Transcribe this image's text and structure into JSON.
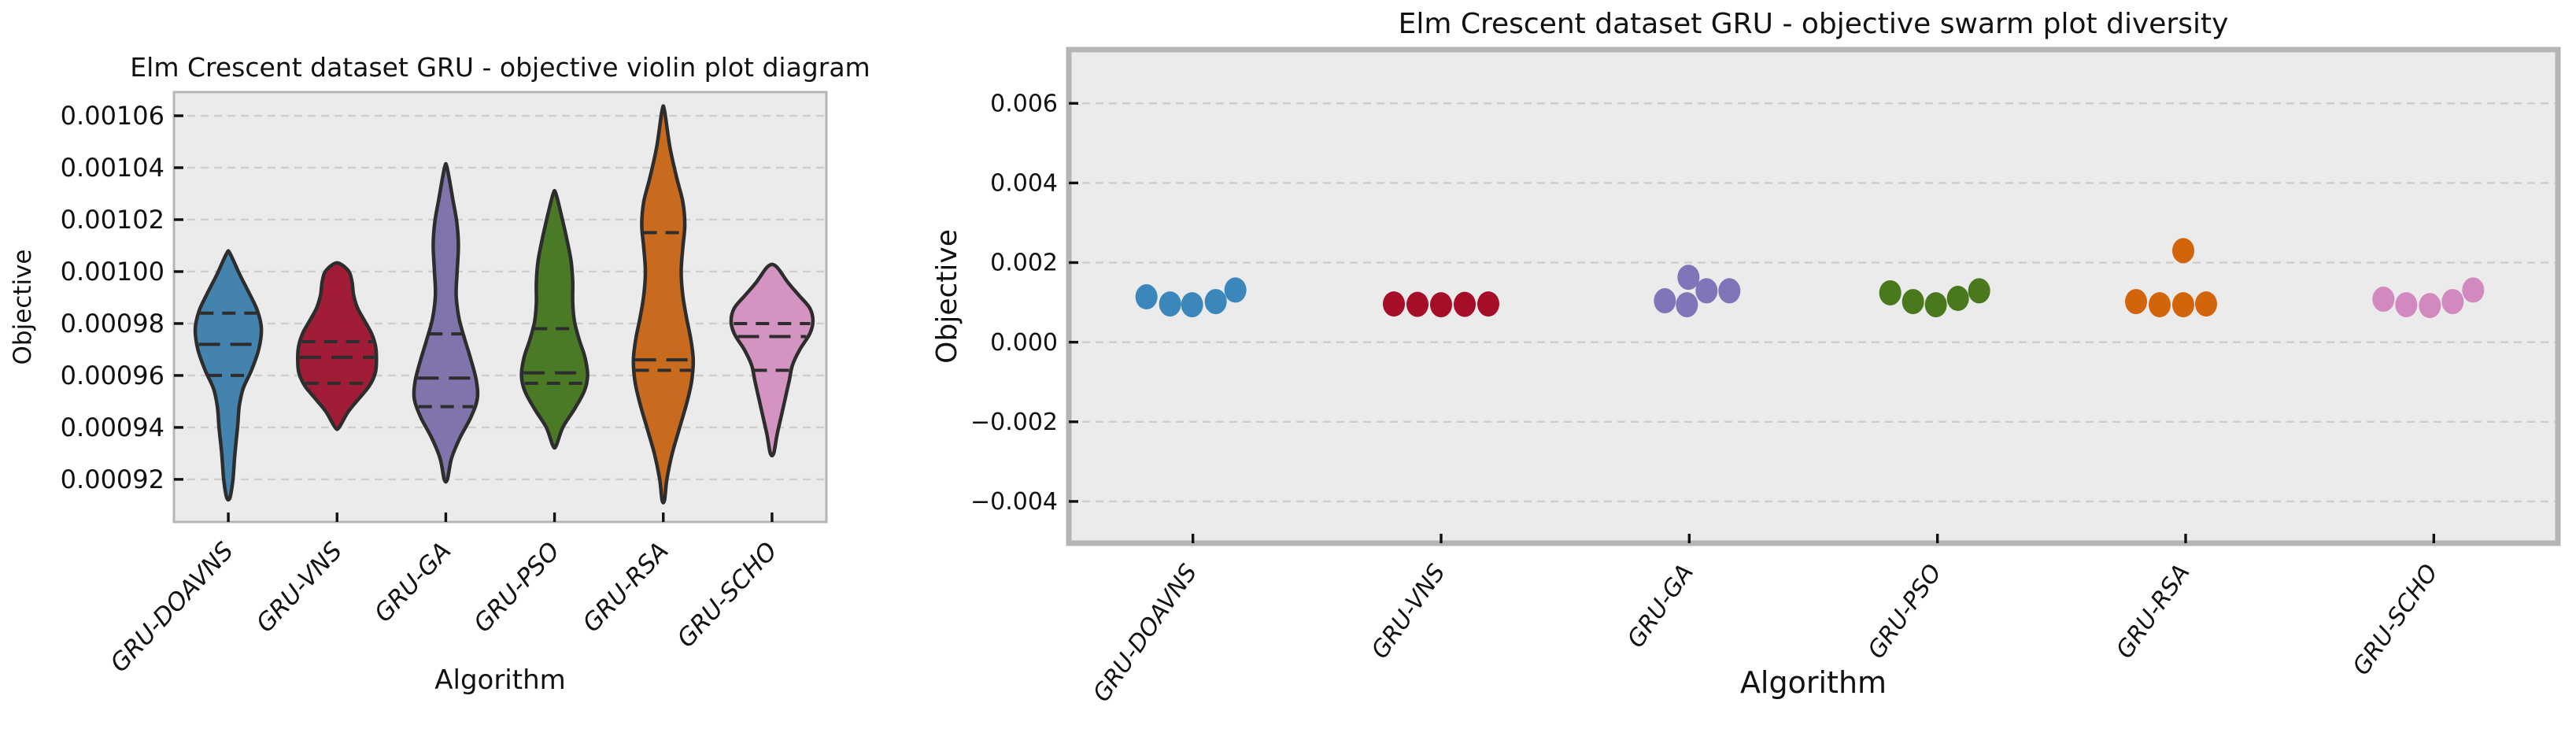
{
  "page": {
    "background": "#ffffff",
    "plot_background": "#ebebeb",
    "grid_color": "#cdcdcd",
    "frame_color": "#b5b5b5",
    "violin_edge_color": "#2d2d2d",
    "text_color": "#111111"
  },
  "chart_data": [
    {
      "id": "violin-chart",
      "type": "violin",
      "title": "Elm Crescent dataset GRU -  objective violin plot diagram",
      "xlabel": "Algorithm",
      "ylabel": "Objective",
      "grid": true,
      "ylim": [
        0.0009036,
        0.0010691
      ],
      "yticks": [
        {
          "label": "0.00106",
          "value": 0.00106
        },
        {
          "label": "0.00104",
          "value": 0.00104
        },
        {
          "label": "0.00102",
          "value": 0.00102
        },
        {
          "label": "0.00100",
          "value": 0.001
        },
        {
          "label": "0.00098",
          "value": 0.00098
        },
        {
          "label": "0.00096",
          "value": 0.00096
        },
        {
          "label": "0.00094",
          "value": 0.00094
        },
        {
          "label": "0.00092",
          "value": 0.00092
        }
      ],
      "categories": [
        "GRU-DOAVNS",
        "GRU-VNS",
        "GRU-GA",
        "GRU-PSO",
        "GRU-RSA",
        "GRU-SCHO"
      ],
      "violins": [
        {
          "name": "GRU-DOAVNS",
          "color": "#4383ad",
          "halfwidth": 42,
          "range": [
            0.000913,
            0.001007
          ],
          "quartiles": [
            0.00096,
            0.000972,
            0.000984
          ],
          "points": [
            [
              0.000913,
              0.05
            ],
            [
              0.00092,
              0.14
            ],
            [
              0.00093,
              0.2
            ],
            [
              0.00094,
              0.28
            ],
            [
              0.000948,
              0.33
            ],
            [
              0.000955,
              0.45
            ],
            [
              0.000962,
              0.7
            ],
            [
              0.00097,
              0.92
            ],
            [
              0.000978,
              1.0
            ],
            [
              0.000985,
              0.88
            ],
            [
              0.000992,
              0.62
            ],
            [
              0.000999,
              0.34
            ],
            [
              0.001007,
              0.05
            ]
          ]
        },
        {
          "name": "GRU-VNS",
          "color": "#a11d37",
          "halfwidth": 50,
          "range": [
            0.00094,
            0.001003
          ],
          "quartiles": [
            0.000957,
            0.000967,
            0.000973
          ],
          "points": [
            [
              0.00094,
              0.05
            ],
            [
              0.000946,
              0.28
            ],
            [
              0.000951,
              0.55
            ],
            [
              0.000956,
              0.82
            ],
            [
              0.000961,
              0.97
            ],
            [
              0.000966,
              1.0
            ],
            [
              0.000971,
              0.98
            ],
            [
              0.000976,
              0.88
            ],
            [
              0.000981,
              0.7
            ],
            [
              0.000986,
              0.52
            ],
            [
              0.000991,
              0.42
            ],
            [
              0.000996,
              0.38
            ],
            [
              0.001,
              0.3
            ],
            [
              0.001003,
              0.08
            ]
          ]
        },
        {
          "name": "GRU-GA",
          "color": "#8173ac",
          "halfwidth": 40,
          "range": [
            0.00092,
            0.00104
          ],
          "quartiles": [
            0.000948,
            0.000959,
            0.000976
          ],
          "points": [
            [
              0.00092,
              0.05
            ],
            [
              0.000928,
              0.18
            ],
            [
              0.000936,
              0.45
            ],
            [
              0.000944,
              0.8
            ],
            [
              0.000951,
              1.0
            ],
            [
              0.000958,
              0.97
            ],
            [
              0.000966,
              0.8
            ],
            [
              0.000974,
              0.6
            ],
            [
              0.000982,
              0.42
            ],
            [
              0.000991,
              0.33
            ],
            [
              0.001,
              0.36
            ],
            [
              0.00101,
              0.4
            ],
            [
              0.001019,
              0.35
            ],
            [
              0.001028,
              0.22
            ],
            [
              0.00104,
              0.04
            ]
          ]
        },
        {
          "name": "GRU-PSO",
          "color": "#4b7a27",
          "halfwidth": 42,
          "range": [
            0.000933,
            0.00103
          ],
          "quartiles": [
            0.000957,
            0.000961,
            0.000978
          ],
          "points": [
            [
              0.000933,
              0.05
            ],
            [
              0.00094,
              0.25
            ],
            [
              0.000947,
              0.6
            ],
            [
              0.000954,
              0.9
            ],
            [
              0.00096,
              1.0
            ],
            [
              0.000967,
              0.92
            ],
            [
              0.000974,
              0.74
            ],
            [
              0.000981,
              0.6
            ],
            [
              0.000988,
              0.55
            ],
            [
              0.000996,
              0.55
            ],
            [
              0.001004,
              0.5
            ],
            [
              0.001012,
              0.38
            ],
            [
              0.001021,
              0.22
            ],
            [
              0.00103,
              0.04
            ]
          ]
        },
        {
          "name": "GRU-RSA",
          "color": "#c96b1e",
          "halfwidth": 38,
          "range": [
            0.000912,
            0.001062
          ],
          "quartiles": [
            0.000962,
            0.000966,
            0.001015
          ],
          "points": [
            [
              0.000912,
              0.04
            ],
            [
              0.00092,
              0.12
            ],
            [
              0.00093,
              0.3
            ],
            [
              0.00094,
              0.55
            ],
            [
              0.00095,
              0.8
            ],
            [
              0.000958,
              0.95
            ],
            [
              0.000966,
              1.0
            ],
            [
              0.000974,
              0.92
            ],
            [
              0.000982,
              0.78
            ],
            [
              0.000991,
              0.65
            ],
            [
              0.001,
              0.6
            ],
            [
              0.001009,
              0.65
            ],
            [
              0.001018,
              0.72
            ],
            [
              0.001027,
              0.65
            ],
            [
              0.001036,
              0.45
            ],
            [
              0.001048,
              0.22
            ],
            [
              0.001062,
              0.04
            ]
          ]
        },
        {
          "name": "GRU-SCHO",
          "color": "#d394c1",
          "halfwidth": 52,
          "range": [
            0.00093,
            0.001002
          ],
          "quartiles": [
            0.000962,
            0.000975,
            0.00098
          ],
          "points": [
            [
              0.00093,
              0.04
            ],
            [
              0.000937,
              0.12
            ],
            [
              0.000944,
              0.22
            ],
            [
              0.000951,
              0.32
            ],
            [
              0.000958,
              0.42
            ],
            [
              0.000964,
              0.5
            ],
            [
              0.00097,
              0.68
            ],
            [
              0.000976,
              0.92
            ],
            [
              0.000981,
              1.0
            ],
            [
              0.000986,
              0.92
            ],
            [
              0.000991,
              0.65
            ],
            [
              0.000996,
              0.38
            ],
            [
              0.001002,
              0.1
            ]
          ]
        }
      ]
    },
    {
      "id": "swarm-chart",
      "type": "scatter",
      "title": "Elm Crescent dataset GRU -  objective swarm plot diversity",
      "xlabel": "Algorithm",
      "ylabel": "Objective",
      "grid": true,
      "ylim": [
        -0.00505,
        0.00735
      ],
      "yticks": [
        {
          "label": "0.006",
          "value": 0.006
        },
        {
          "label": "0.004",
          "value": 0.004
        },
        {
          "label": "0.002",
          "value": 0.002
        },
        {
          "label": "0.000",
          "value": 0.0
        },
        {
          "label": "−0.002",
          "value": -0.002
        },
        {
          "label": "−0.004",
          "value": -0.004
        }
      ],
      "categories": [
        "GRU-DOAVNS",
        "GRU-VNS",
        "GRU-GA",
        "GRU-PSO",
        "GRU-RSA",
        "GRU-SCHO"
      ],
      "groups": [
        {
          "name": "GRU-DOAVNS",
          "color": "#3b87bb",
          "points": [
            [
              -59,
              0.00114
            ],
            [
              -29,
              0.00096
            ],
            [
              -1,
              0.00094
            ],
            [
              29,
              0.00102
            ],
            [
              54,
              0.00131
            ]
          ]
        },
        {
          "name": "GRU-VNS",
          "color": "#a60d28",
          "points": [
            [
              -60,
              0.00096
            ],
            [
              -30,
              0.00095
            ],
            [
              0,
              0.00094
            ],
            [
              30,
              0.00095
            ],
            [
              60,
              0.00096
            ]
          ]
        },
        {
          "name": "GRU-GA",
          "color": "#8174b8",
          "points": [
            [
              -31,
              0.00104
            ],
            [
              -1,
              0.00163
            ],
            [
              -3,
              0.00094
            ],
            [
              22,
              0.00129
            ],
            [
              51,
              0.00129
            ]
          ]
        },
        {
          "name": "GRU-PSO",
          "color": "#49791c",
          "points": [
            [
              -60,
              0.00124
            ],
            [
              -31,
              0.00102
            ],
            [
              -2,
              0.00094
            ],
            [
              26,
              0.0011
            ],
            [
              53,
              0.00129
            ]
          ]
        },
        {
          "name": "GRU-RSA",
          "color": "#d2650c",
          "points": [
            [
              -63,
              0.00102
            ],
            [
              -33,
              0.00094
            ],
            [
              -3,
              0.00094
            ],
            [
              26,
              0.00096
            ],
            [
              -3,
              0.0023
            ]
          ]
        },
        {
          "name": "GRU-SCHO",
          "color": "#d289bf",
          "points": [
            [
              -64,
              0.00108
            ],
            [
              -35,
              0.00094
            ],
            [
              -5,
              0.00092
            ],
            [
              24,
              0.00102
            ],
            [
              50,
              0.00131
            ]
          ]
        }
      ]
    }
  ]
}
